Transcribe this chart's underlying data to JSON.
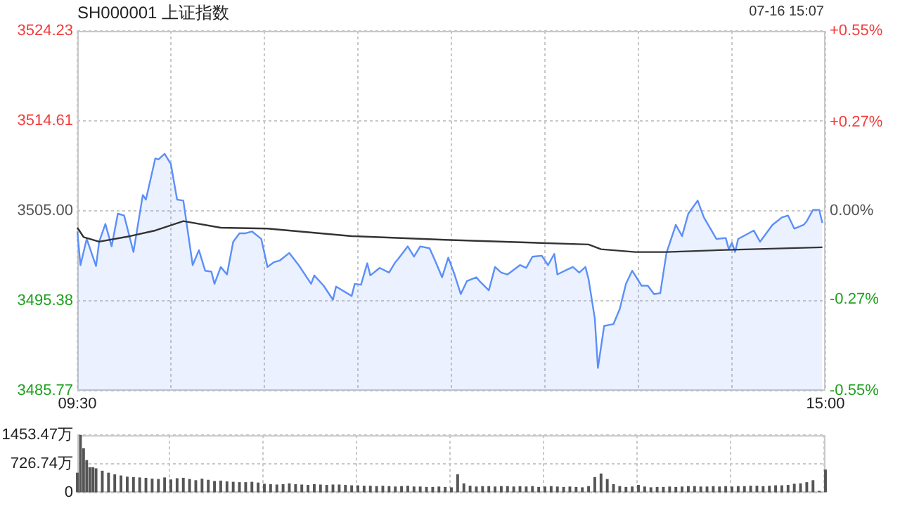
{
  "chart_data": [
    {
      "type": "line",
      "title": "SH000001 上证指数",
      "annotations": [
        "07-16 15:07"
      ],
      "categories": [
        "09:30",
        null,
        null,
        null,
        null,
        null,
        null,
        null,
        null,
        null,
        null,
        null,
        null,
        null,
        null,
        null,
        null,
        null,
        null,
        null,
        null,
        null,
        null,
        null,
        null,
        null,
        null,
        null,
        null,
        null,
        null,
        null,
        null,
        null,
        null,
        null,
        null,
        null,
        null,
        null,
        null,
        null,
        null,
        null,
        null,
        null,
        null,
        null,
        null,
        null,
        null,
        null,
        null,
        null,
        null,
        null,
        null,
        null,
        null,
        null,
        null,
        null,
        null,
        null,
        null,
        null,
        null,
        null,
        null,
        null,
        null,
        null,
        null,
        null,
        null,
        null,
        null,
        null,
        null,
        null,
        null,
        null,
        null,
        null,
        null,
        null,
        null,
        null,
        null,
        null,
        null,
        null,
        null,
        null,
        null,
        null,
        null,
        null,
        null,
        null,
        null,
        null,
        null,
        null,
        null,
        null,
        null,
        null,
        null,
        null,
        null,
        null,
        null,
        null,
        null,
        null,
        null,
        null,
        null,
        null,
        null,
        null,
        null,
        null,
        null,
        null,
        null,
        null,
        null,
        null,
        null,
        null,
        null,
        null,
        null,
        null,
        null,
        null,
        null,
        null,
        null,
        null,
        null,
        null,
        null,
        null,
        null,
        null,
        null,
        null,
        null,
        null,
        null,
        null,
        null,
        null,
        null,
        null,
        null,
        null,
        null,
        null,
        null,
        null,
        null,
        null,
        null,
        null,
        null,
        null,
        null,
        null,
        null,
        null,
        null,
        null,
        null,
        null,
        null,
        null,
        null,
        null,
        null,
        null,
        null,
        null,
        null,
        null,
        null,
        null,
        null,
        null,
        null,
        null,
        null,
        null,
        null,
        null,
        null,
        null,
        null,
        null,
        null,
        null,
        null,
        null,
        null,
        null,
        null,
        null,
        null,
        null,
        null,
        null,
        null,
        null,
        null,
        null,
        null,
        null,
        null,
        null,
        null,
        null,
        null,
        null,
        null,
        null,
        null,
        null,
        null,
        null,
        null,
        null,
        null,
        null,
        null,
        null,
        null,
        null,
        "15:00"
      ],
      "ylim": [
        3485.77,
        3524.23
      ],
      "yticks": [
        3485.77,
        3495.38,
        {
          "value": 3505,
          "label": "3505.00"
        },
        3514.61,
        3524.23
      ],
      "y2lim": [
        -0.55,
        0.55
      ],
      "y2ticks": [
        {
          "value": -0.55,
          "label": "-0.55%"
        },
        {
          "value": -0.27,
          "label": "-0.27%"
        },
        {
          "value": 0,
          "label": "0.00%"
        },
        {
          "value": 0.27,
          "label": "+0.27%"
        },
        {
          "value": 0.55,
          "label": "+0.55%"
        }
      ],
      "grid": true,
      "marker": "none",
      "series": [
        {
          "type": "area",
          "color": "#5b8ff9",
          "values": [
            3502.8,
            3499.2,
            null,
            3502.0,
            null,
            null,
            3499.1,
            3501.7,
            null,
            3503.6,
            null,
            3501.2,
            null,
            3504.7,
            null,
            3504.5,
            null,
            null,
            3500.6,
            null,
            null,
            3506.7,
            3506.2,
            null,
            null,
            3510.6,
            3510.5,
            null,
            3511.1,
            null,
            3510.0,
            null,
            3506.2,
            null,
            3506.1,
            null,
            null,
            3499.2,
            null,
            3500.8,
            null,
            3498.6,
            null,
            3498.5,
            3497.2,
            null,
            3499.0,
            null,
            3498.2,
            null,
            3501.7,
            null,
            3502.6,
            null,
            3502.6,
            null,
            3502.8,
            null,
            null,
            3502.0,
            null,
            3499.0,
            null,
            3499.5,
            null,
            3499.7,
            null,
            null,
            3500.5,
            null,
            null,
            3499.2,
            null,
            null,
            null,
            3497.2,
            3498.1,
            null,
            null,
            3497.0,
            null,
            null,
            3495.5,
            3496.9,
            null,
            null,
            null,
            null,
            3495.9,
            3497.2,
            null,
            3497.1,
            null,
            3499.4,
            3498.1,
            null,
            null,
            3498.9,
            null,
            null,
            3498.4,
            null,
            3499.5,
            3499.9,
            null,
            null,
            3501.2,
            null,
            3500.1,
            null,
            3501.2,
            null,
            null,
            3501.0,
            null,
            3499.5,
            null,
            3497.9,
            null,
            3500.0,
            null,
            3498.2,
            null,
            3496.1,
            null,
            3497.5,
            null,
            null,
            3497.9,
            3497.5,
            null,
            null,
            3496.5,
            null,
            3499.0,
            null,
            3498.4,
            null,
            3498.2,
            null,
            null,
            null,
            3499.2,
            null,
            3498.9,
            null,
            3500.1,
            null,
            null,
            3500.2,
            null,
            3499.2,
            null,
            3500.4,
            3498.2,
            null,
            null,
            3498.7,
            null,
            3499.0,
            null,
            3498.4,
            null,
            3499.0,
            3497.7,
            null,
            3493.5,
            3488.2,
            null,
            3492.7,
            null,
            null,
            3492.9,
            null,
            3494.5,
            null,
            3497.2,
            null,
            3498.6,
            null,
            null,
            3497.0,
            null,
            3497.0,
            null,
            3496.1,
            null,
            3496.2,
            null,
            3500.5,
            null,
            null,
            3503.5,
            null,
            3502.3,
            null,
            3504.7,
            null,
            null,
            3506.1,
            null,
            3504.3,
            null,
            null,
            null,
            3502.0,
            null,
            null,
            3502.1,
            3500.9,
            3501.6,
            3500.6,
            3502.0,
            null,
            null,
            null,
            null,
            3502.9,
            null,
            3501.7,
            null,
            null,
            null,
            3503.5,
            null,
            null,
            3504.3,
            null,
            3504.5,
            null,
            3503.1,
            null,
            null,
            3503.5,
            3503.9,
            null,
            3505.1,
            null,
            3505.1,
            3503.7,
            null
          ]
        },
        {
          "type": "line",
          "color": "#333333",
          "values": [
            3503.2,
            null,
            3502.2,
            null,
            null,
            null,
            null,
            3501.7,
            null,
            null,
            null,
            null,
            null,
            null,
            null,
            null,
            null,
            3502.3,
            null,
            null,
            null,
            null,
            null,
            null,
            null,
            3502.9,
            null,
            null,
            null,
            null,
            null,
            null,
            null,
            null,
            3503.9,
            null,
            null,
            null,
            null,
            null,
            null,
            null,
            null,
            null,
            null,
            null,
            3503.2,
            null,
            null,
            null,
            null,
            null,
            null,
            null,
            null,
            null,
            null,
            null,
            null,
            null,
            null,
            3503.1,
            null,
            null,
            null,
            null,
            null,
            null,
            null,
            null,
            null,
            null,
            null,
            null,
            null,
            null,
            null,
            null,
            null,
            null,
            null,
            null,
            null,
            null,
            null,
            null,
            null,
            null,
            3502.3,
            null,
            null,
            null,
            null,
            null,
            null,
            null,
            null,
            null,
            null,
            null,
            null,
            null,
            null,
            null,
            null,
            null,
            null,
            null,
            null,
            null,
            null,
            null,
            null,
            null,
            null,
            null,
            null,
            null,
            3501.9,
            null,
            null,
            null,
            null,
            null,
            null,
            null,
            null,
            null,
            null,
            null,
            null,
            null,
            null,
            null,
            null,
            null,
            null,
            null,
            null,
            null,
            null,
            null,
            null,
            null,
            null,
            null,
            null,
            null,
            null,
            null,
            null,
            null,
            null,
            null,
            null,
            null,
            null,
            null,
            null,
            null,
            null,
            null,
            null,
            null,
            3501.4,
            null,
            null,
            null,
            3500.9,
            null,
            null,
            null,
            null,
            null,
            null,
            null,
            null,
            null,
            null,
            3500.6,
            null,
            null,
            null,
            null,
            null,
            null,
            null,
            null,
            null,
            3500.6,
            null,
            null,
            null,
            null,
            null,
            null,
            null,
            null,
            null,
            null,
            null,
            null,
            null,
            null,
            null,
            null,
            3500.8,
            null,
            null,
            null,
            null,
            null,
            null,
            null,
            null,
            null,
            null,
            null,
            null,
            null,
            null,
            null,
            null,
            null,
            null,
            null,
            null,
            null,
            null,
            null,
            null,
            null,
            null,
            null,
            null,
            null,
            null,
            null,
            null,
            3501.1,
            null
          ]
        }
      ]
    },
    {
      "type": "bar",
      "tick_labels": "y",
      "categories": [
        null,
        null,
        null,
        null,
        null,
        null,
        null,
        null,
        null,
        null,
        null,
        null,
        null,
        null,
        null,
        null,
        null,
        null,
        null,
        null,
        null,
        null,
        null,
        null,
        null,
        null,
        null,
        null,
        null,
        null,
        null,
        null,
        null,
        null,
        null,
        null,
        null,
        null,
        null,
        null,
        null,
        null,
        null,
        null,
        null,
        null,
        null,
        null,
        null,
        null,
        null,
        null,
        null,
        null,
        null,
        null,
        null,
        null,
        null,
        null,
        null,
        null,
        null,
        null,
        null,
        null,
        null,
        null,
        null,
        null,
        null,
        null,
        null,
        null,
        null,
        null,
        null,
        null,
        null,
        null,
        null,
        null,
        null,
        null,
        null,
        null,
        null,
        null,
        null,
        null,
        null,
        null,
        null,
        null,
        null,
        null,
        null,
        null,
        null,
        null,
        null,
        null,
        null,
        null,
        null,
        null,
        null,
        null,
        null,
        null,
        null,
        null,
        null,
        null,
        null,
        null,
        null,
        null,
        null,
        null,
        null,
        null,
        null,
        null,
        null,
        null,
        null,
        null,
        null,
        null,
        null,
        null,
        null,
        null,
        null,
        null,
        null,
        null,
        null,
        null,
        null,
        null,
        null,
        null,
        null,
        null,
        null,
        null,
        null,
        null,
        null,
        null,
        null,
        null,
        null,
        null,
        null,
        null,
        null,
        null,
        null,
        null,
        null,
        null,
        null,
        null,
        null,
        null,
        null,
        null,
        null,
        null,
        null,
        null,
        null,
        null,
        null,
        null,
        null,
        null,
        null,
        null,
        null,
        null,
        null,
        null,
        null,
        null,
        null,
        null,
        null,
        null,
        null,
        null,
        null,
        null,
        null,
        null,
        null,
        null,
        null,
        null,
        null,
        null,
        null,
        null,
        null,
        null,
        null,
        null,
        null,
        null,
        null,
        null,
        null,
        null,
        null,
        null,
        null,
        null,
        null,
        null,
        null,
        null,
        null,
        null,
        null,
        null,
        null,
        null,
        null,
        null,
        null,
        null,
        null,
        null,
        null,
        null,
        null,
        null,
        null
      ],
      "ylim": [
        0,
        1453.47
      ],
      "yticks": [
        0,
        {
          "value": 726.74,
          "label": "726.74万"
        },
        {
          "value": 1453.47,
          "label": "1453.47万"
        }
      ],
      "grid": true,
      "series": [
        {
          "color": "#555555",
          "values": [
            490,
            1450,
            1110,
            810,
            630,
            630,
            600,
            null,
            540,
            null,
            490,
            null,
            450,
            null,
            420,
            null,
            390,
            null,
            380,
            null,
            370,
            null,
            360,
            null,
            340,
            null,
            330,
            null,
            370,
            null,
            320,
            null,
            350,
            null,
            360,
            null,
            330,
            null,
            300,
            null,
            340,
            null,
            310,
            null,
            280,
            null,
            290,
            null,
            270,
            null,
            260,
            null,
            250,
            null,
            250,
            null,
            260,
            null,
            240,
            null,
            210,
            null,
            200,
            null,
            190,
            null,
            200,
            null,
            220,
            null,
            200,
            null,
            190,
            null,
            180,
            null,
            200,
            null,
            190,
            null,
            180,
            null,
            190,
            null,
            190,
            null,
            180,
            null,
            170,
            null,
            170,
            null,
            160,
            null,
            160,
            null,
            150,
            null,
            160,
            null,
            150,
            null,
            140,
            null,
            150,
            null,
            160,
            null,
            140,
            null,
            140,
            null,
            130,
            null,
            130,
            null,
            140,
            null,
            130,
            null,
            120,
            null,
            450,
            null,
            220,
            null,
            160,
            null,
            140,
            null,
            150,
            null,
            150,
            null,
            140,
            null,
            150,
            null,
            150,
            null,
            140,
            null,
            150,
            null,
            140,
            null,
            150,
            null,
            130,
            null,
            140,
            null,
            150,
            null,
            140,
            null,
            130,
            null,
            140,
            null,
            130,
            null,
            120,
            null,
            150,
            null,
            380,
            null,
            470,
            null,
            330,
            null,
            200,
            null,
            150,
            null,
            130,
            null,
            140,
            null,
            180,
            null,
            140,
            null,
            120,
            null,
            130,
            null,
            130,
            null,
            140,
            null,
            130,
            null,
            140,
            null,
            150,
            null,
            150,
            null,
            140,
            null,
            140,
            null,
            150,
            null,
            140,
            null,
            150,
            null,
            140,
            null,
            150,
            null,
            150,
            null,
            160,
            null,
            160,
            null,
            150,
            null,
            160,
            null,
            170,
            null,
            170,
            null,
            180,
            null,
            210,
            null,
            220,
            null,
            250,
            null,
            300,
            null,
            30,
            null,
            570
          ]
        }
      ]
    }
  ]
}
